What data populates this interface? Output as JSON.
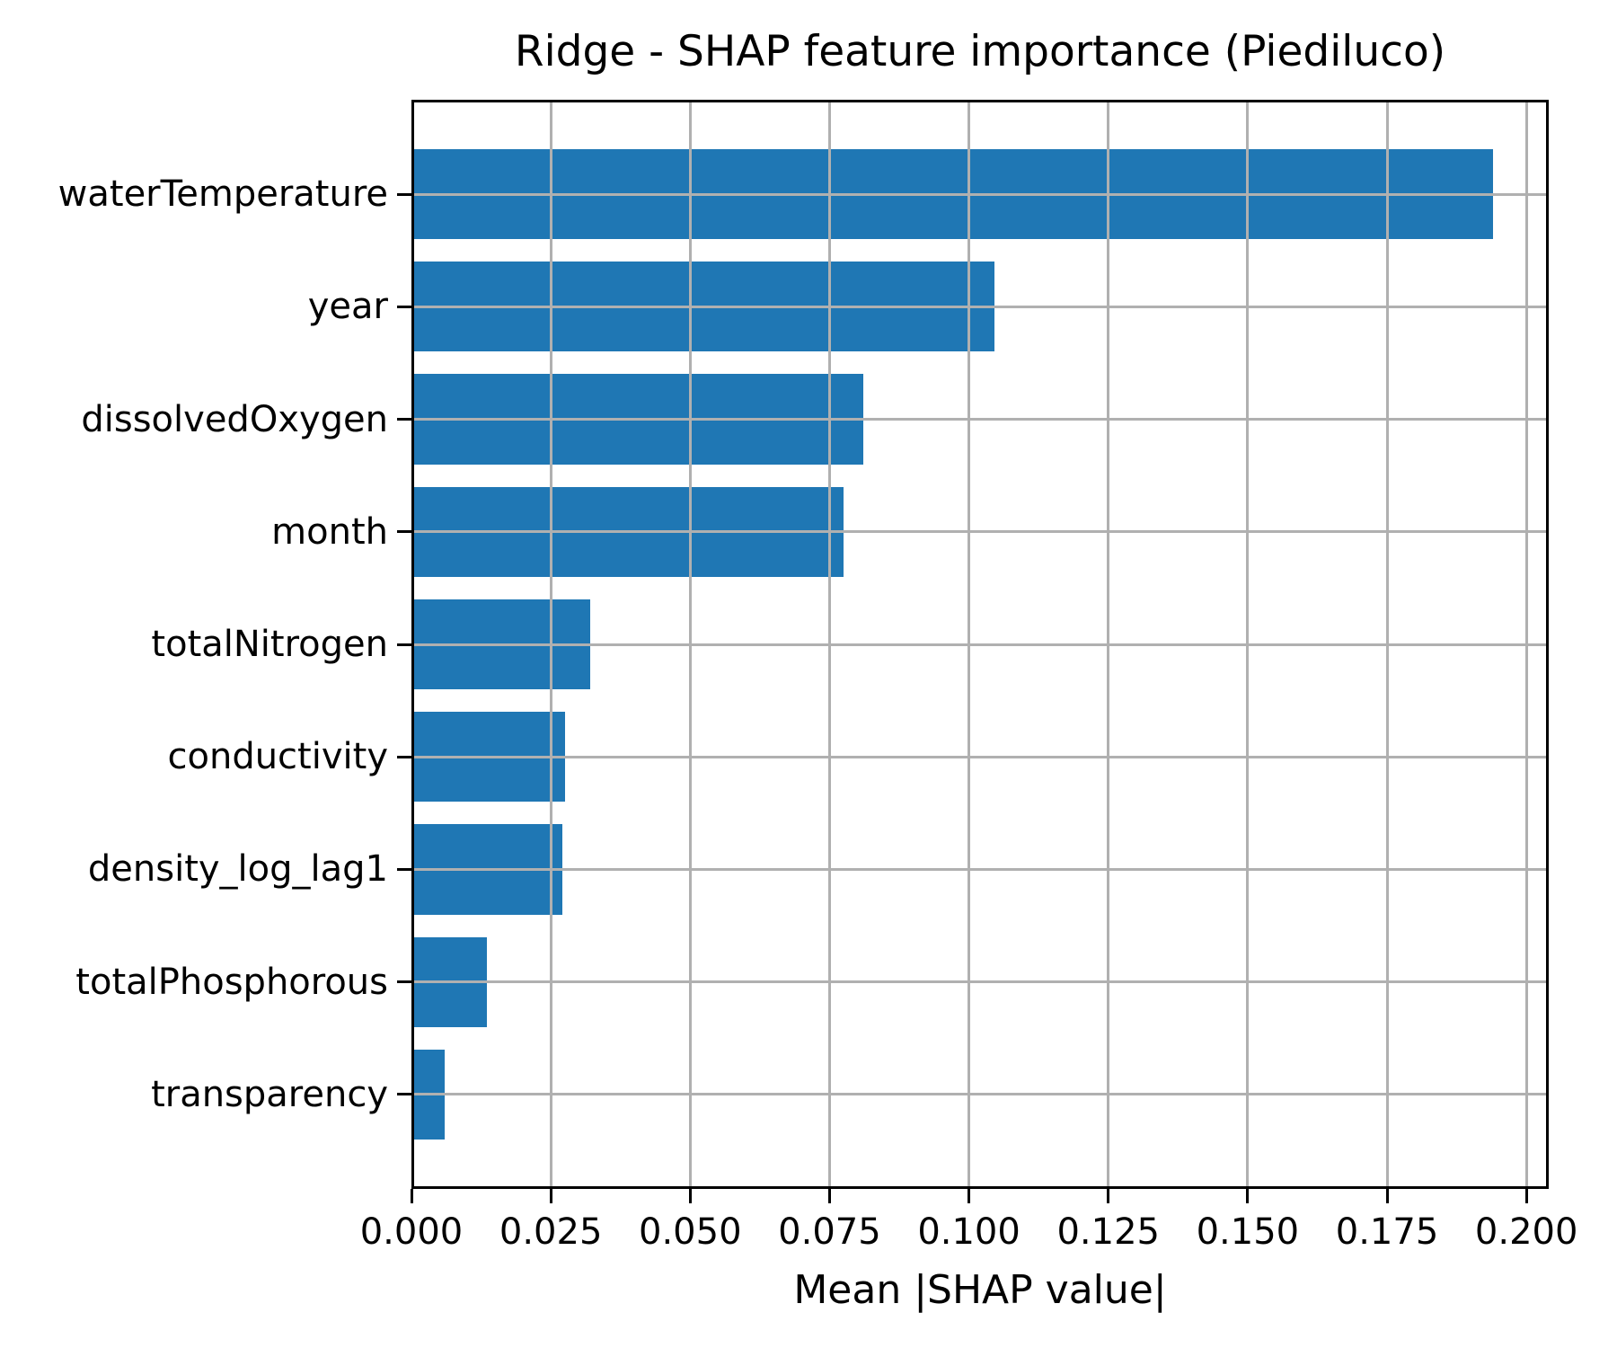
{
  "chart_data": {
    "type": "bar",
    "orientation": "horizontal",
    "title": "Ridge - SHAP feature importance (Piediluco)",
    "xlabel": "Mean |SHAP value|",
    "ylabel": "",
    "categories": [
      "waterTemperature",
      "year",
      "dissolvedOxygen",
      "month",
      "totalNitrogen",
      "conductivity",
      "density_log_lag1",
      "totalPhosphorous",
      "transparency"
    ],
    "values": [
      0.194,
      0.1045,
      0.081,
      0.0775,
      0.032,
      0.0276,
      0.0271,
      0.0135,
      0.006
    ],
    "xlim": [
      0,
      0.204
    ],
    "xticks": [
      0,
      0.025,
      0.05,
      0.075,
      0.1,
      0.125,
      0.15,
      0.175,
      0.2
    ],
    "xtick_labels": [
      "0.000",
      "0.025",
      "0.050",
      "0.075",
      "0.100",
      "0.125",
      "0.150",
      "0.175",
      "0.200"
    ],
    "legend": "none",
    "grid": "on",
    "grid_over_bars": true,
    "bar_color": "#1f77b4",
    "grid_color": "#b0b0b0",
    "frame_color": "#000000",
    "background_color": "#ffffff",
    "text_color": "#000000"
  }
}
